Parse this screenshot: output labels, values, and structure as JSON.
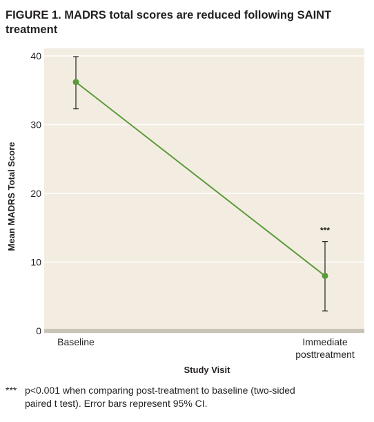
{
  "figure": {
    "label": "FIGURE 1.",
    "title": "MADRS total scores are reduced following SAINT treatment"
  },
  "chart_data": {
    "type": "line",
    "categories": [
      "Baseline",
      "Immediate posttreatment"
    ],
    "category_lines": [
      [
        "Baseline"
      ],
      [
        "Immediate",
        "posttreatment"
      ]
    ],
    "series": [
      {
        "values": [
          36.2,
          8.0
        ],
        "ci_low": [
          32.3,
          2.9
        ],
        "ci_high": [
          39.9,
          13.0
        ],
        "color": "#5a9a3a"
      }
    ],
    "annotations": [
      {
        "category": "Immediate posttreatment",
        "text": "***"
      }
    ],
    "xlabel": "Study Visit",
    "ylabel": "Mean MADRS Total Score",
    "ylim": [
      0,
      40
    ],
    "yticks": [
      0,
      10,
      20,
      30,
      40
    ],
    "grid": true,
    "colors": {
      "plot_background": "#f3ede1",
      "gridline": "#ffffff",
      "baseline_bar": "#c9c3b8",
      "errorbar": "#231f20"
    }
  },
  "footnote": {
    "marker": "***",
    "line1": "p<0.001 when comparing post-treatment to baseline (two-sided",
    "line2": "paired t test). Error bars represent 95% CI."
  }
}
